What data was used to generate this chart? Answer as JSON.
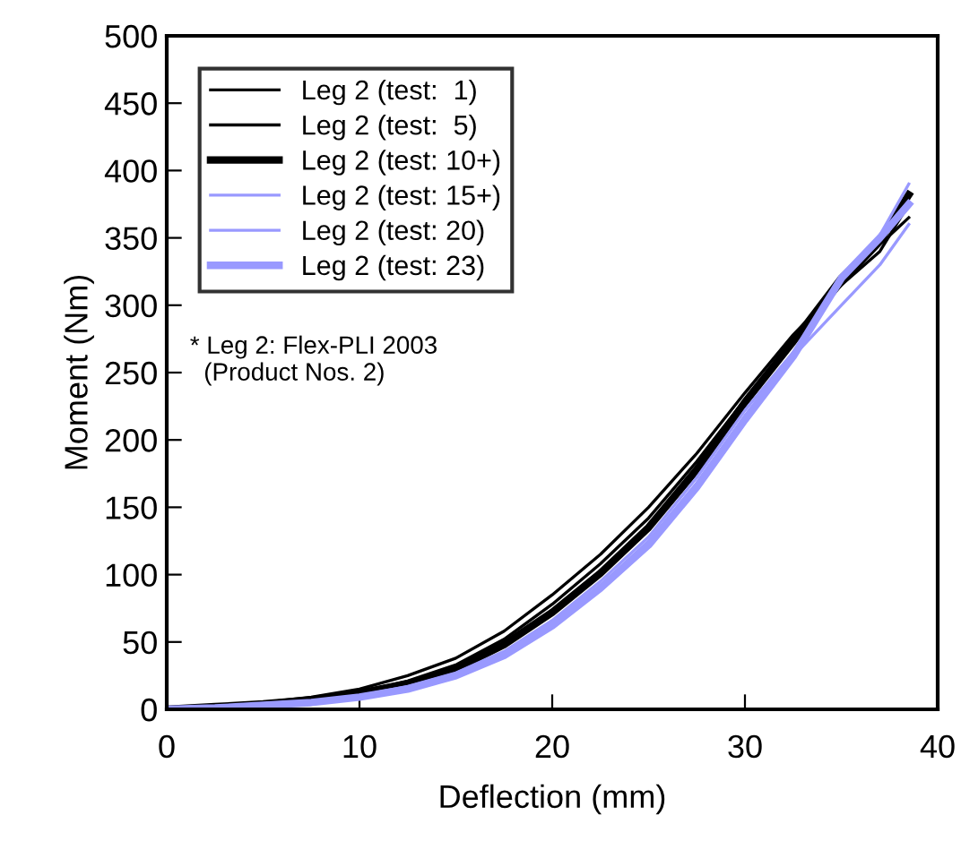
{
  "chart_data": {
    "type": "line",
    "xlabel": "Deflection (mm)",
    "ylabel": "Moment (Nm)",
    "xlim": [
      0,
      40
    ],
    "xticks": [
      0,
      10,
      20,
      30,
      40
    ],
    "ylim": [
      0,
      500
    ],
    "yticks": [
      0,
      50,
      100,
      150,
      200,
      250,
      300,
      350,
      400,
      450,
      500
    ],
    "grid": false,
    "legend": "top left",
    "marker": "none",
    "line_style": "solid",
    "x": [
      0,
      2.5,
      5,
      7.5,
      10,
      12.5,
      15,
      17.5,
      20,
      22.5,
      25,
      27.5,
      30,
      32.5,
      35,
      37,
      38.5
    ],
    "series": [
      {
        "name": "Leg 2 (test:  1)",
        "color": "#000000",
        "values": [
          0,
          2,
          5,
          9,
          15,
          25,
          38,
          58,
          85,
          115,
          150,
          190,
          235,
          278,
          315,
          340,
          375
        ]
      },
      {
        "name": "Leg 2 (test:  5)",
        "color": "#000000",
        "values": [
          0,
          2,
          4,
          8,
          13,
          21,
          33,
          52,
          78,
          108,
          142,
          184,
          230,
          272,
          315,
          345,
          365
        ]
      },
      {
        "name": "Leg 2 (test: 10+)",
        "color": "#000000",
        "values": [
          0,
          2,
          4,
          7,
          12,
          19,
          30,
          48,
          72,
          101,
          135,
          178,
          228,
          273,
          320,
          348,
          382
        ]
      },
      {
        "name": "Leg 2 (test: 15+)",
        "color": "#9999ff",
        "values": [
          0,
          1,
          3,
          6,
          10,
          17,
          27,
          43,
          66,
          95,
          128,
          172,
          222,
          265,
          318,
          352,
          390
        ]
      },
      {
        "name": "Leg 2 (test: 20)",
        "color": "#9999ff",
        "values": [
          0,
          1,
          3,
          6,
          10,
          16,
          26,
          42,
          64,
          92,
          125,
          168,
          218,
          262,
          300,
          330,
          360
        ]
      },
      {
        "name": "Leg 2 (test: 23)",
        "color": "#9999ff",
        "values": [
          0,
          1,
          3,
          5,
          9,
          15,
          25,
          40,
          62,
          90,
          122,
          165,
          215,
          262,
          320,
          350,
          375
        ]
      }
    ],
    "annotations": [
      "* Leg 2: Flex-PLI 2003\n  (Product Nos. 2)"
    ]
  }
}
